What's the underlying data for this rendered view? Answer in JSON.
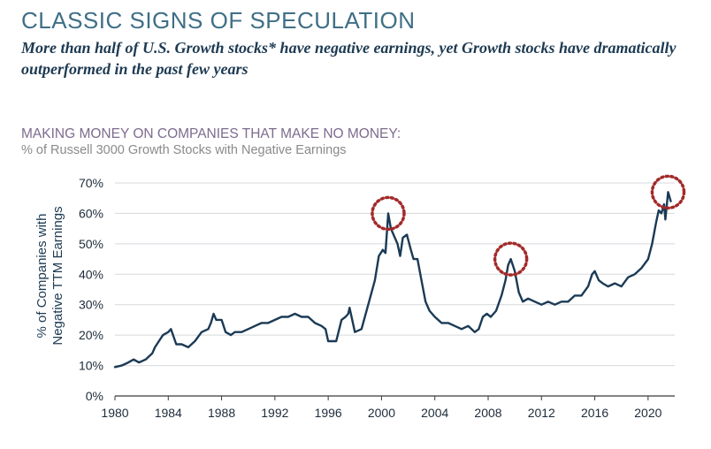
{
  "header": {
    "title": "CLASSIC SIGNS OF SPECULATION",
    "subtitle": "More than half of U.S. Growth stocks* have negative earnings, yet Growth stocks have dramatically outperformed in the past few years"
  },
  "chart_data": {
    "type": "line",
    "title": "MAKING MONEY ON COMPANIES THAT MAKE NO MONEY:",
    "subtitle": "% of Russell 3000 Growth Stocks with Negative Earnings",
    "ylabel_line1": "% of Companies with",
    "ylabel_line2": "Negative TTM Earnings",
    "xlabel": "",
    "xlim": [
      1980,
      2022
    ],
    "ylim": [
      0,
      70
    ],
    "x_ticks": [
      "1980",
      "1984",
      "1988",
      "1992",
      "1996",
      "2000",
      "2004",
      "2008",
      "2012",
      "2016",
      "2020"
    ],
    "y_ticks": [
      "0%",
      "10%",
      "20%",
      "30%",
      "40%",
      "50%",
      "60%",
      "70%"
    ],
    "grid": "horizontal",
    "colors": {
      "line": "#1b3a55",
      "highlight": "#a32a2a",
      "title": "#3f6f86",
      "subtitle": "#1d3a52"
    },
    "series": [
      {
        "x": [
          1980.0,
          1980.5,
          1981.0,
          1981.4,
          1981.8,
          1982.3,
          1982.8,
          1983.0,
          1983.3,
          1983.6,
          1984.0,
          1984.2,
          1984.6,
          1985.0,
          1985.5,
          1986.0,
          1986.5,
          1987.0,
          1987.2,
          1987.4,
          1987.6,
          1988.0,
          1988.3,
          1988.7,
          1989.0,
          1989.5,
          1990.0,
          1990.5,
          1991.0,
          1991.5,
          1992.0,
          1992.5,
          1993.0,
          1993.5,
          1994.0,
          1994.5,
          1995.0,
          1995.5,
          1995.8,
          1996.0,
          1996.3,
          1996.6,
          1997.0,
          1997.3,
          1997.5,
          1997.6,
          1998.0,
          1998.5,
          1999.0,
          1999.5,
          1999.8,
          2000.1,
          2000.3,
          2000.5,
          2000.7,
          2000.9,
          2001.2,
          2001.4,
          2001.6,
          2001.9,
          2002.2,
          2002.4,
          2002.7,
          2003.0,
          2003.3,
          2003.6,
          2004.0,
          2004.5,
          2005.0,
          2005.5,
          2006.0,
          2006.5,
          2007.0,
          2007.3,
          2007.6,
          2007.9,
          2008.2,
          2008.6,
          2009.0,
          2009.3,
          2009.5,
          2009.7,
          2010.0,
          2010.3,
          2010.6,
          2011.0,
          2011.5,
          2012.0,
          2012.5,
          2013.0,
          2013.5,
          2014.0,
          2014.5,
          2015.0,
          2015.5,
          2015.8,
          2016.0,
          2016.3,
          2016.6,
          2017.0,
          2017.5,
          2018.0,
          2018.5,
          2019.0,
          2019.5,
          2020.0,
          2020.3,
          2020.6,
          2020.8,
          2021.0,
          2021.2,
          2021.3,
          2021.5,
          2021.7
        ],
        "values": [
          9.5,
          10,
          11,
          12,
          11,
          12,
          14,
          16,
          18,
          20,
          21,
          22,
          17,
          17,
          16,
          18,
          21,
          22,
          24,
          27,
          25,
          25,
          21,
          20,
          21,
          21,
          22,
          23,
          24,
          24,
          25,
          26,
          26,
          27,
          26,
          26,
          24,
          23,
          22,
          18,
          18,
          18,
          25,
          26,
          27,
          29,
          21,
          22,
          30,
          38,
          46,
          48,
          47,
          60,
          55,
          53,
          50,
          46,
          52,
          53,
          48,
          45,
          45,
          38,
          31,
          28,
          26,
          24,
          24,
          23,
          22,
          23,
          21,
          22,
          26,
          27,
          26,
          28,
          33,
          38,
          43,
          45,
          41,
          34,
          31,
          32,
          31,
          30,
          31,
          30,
          31,
          31,
          33,
          33,
          36,
          40,
          41,
          38,
          37,
          36,
          37,
          36,
          39,
          40,
          42,
          45,
          50,
          57,
          61,
          60,
          63,
          58,
          67,
          64
        ]
      }
    ],
    "highlights": [
      {
        "x": 2000.5,
        "y": 60
      },
      {
        "x": 2009.7,
        "y": 45
      },
      {
        "x": 2021.5,
        "y": 67
      }
    ]
  }
}
